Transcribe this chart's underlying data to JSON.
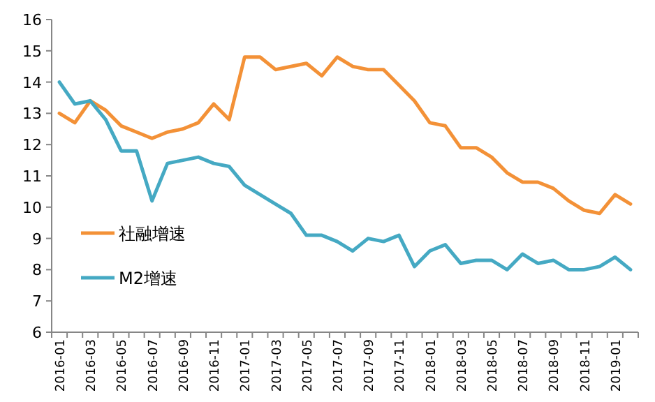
{
  "chart_data": {
    "type": "line",
    "categories": [
      "2016-01",
      null,
      "2016-03",
      null,
      "2016-05",
      null,
      "2016-07",
      null,
      "2016-09",
      null,
      "2016-11",
      null,
      "2017-01",
      null,
      "2017-03",
      null,
      "2017-05",
      null,
      "2017-07",
      null,
      "2017-09",
      null,
      "2017-11",
      null,
      "2018-01",
      null,
      "2018-03",
      null,
      "2018-05",
      null,
      "2018-07",
      null,
      "2018-09",
      null,
      "2018-11",
      null,
      "2019-01",
      null
    ],
    "series": [
      {
        "name": "社融增速",
        "color": "#f39137",
        "values": [
          13.0,
          12.7,
          13.4,
          13.1,
          12.6,
          12.4,
          12.2,
          12.4,
          12.5,
          12.7,
          13.3,
          12.8,
          14.8,
          14.8,
          14.4,
          14.5,
          14.6,
          14.2,
          14.8,
          14.5,
          14.4,
          14.4,
          13.9,
          13.4,
          12.7,
          12.6,
          11.9,
          11.9,
          11.6,
          11.1,
          10.8,
          10.8,
          10.6,
          10.2,
          9.9,
          9.8,
          10.4,
          10.1
        ]
      },
      {
        "name": "M2增速",
        "color": "#45a9c3",
        "values": [
          14.0,
          13.3,
          13.4,
          12.8,
          11.8,
          11.8,
          10.2,
          11.4,
          11.5,
          11.6,
          11.4,
          11.3,
          10.7,
          10.4,
          10.1,
          9.8,
          9.1,
          9.1,
          8.9,
          8.6,
          9.0,
          8.9,
          9.1,
          8.1,
          8.6,
          8.8,
          8.2,
          8.3,
          8.3,
          8.0,
          8.5,
          8.2,
          8.3,
          8.0,
          8.0,
          8.1,
          8.4,
          8.0
        ]
      }
    ],
    "ylim": [
      6,
      16
    ],
    "yticks": [
      6,
      7,
      8,
      9,
      10,
      11,
      12,
      13,
      14,
      15,
      16
    ],
    "grid": false,
    "legend": "left",
    "marker": "none",
    "line_style": "solid"
  }
}
